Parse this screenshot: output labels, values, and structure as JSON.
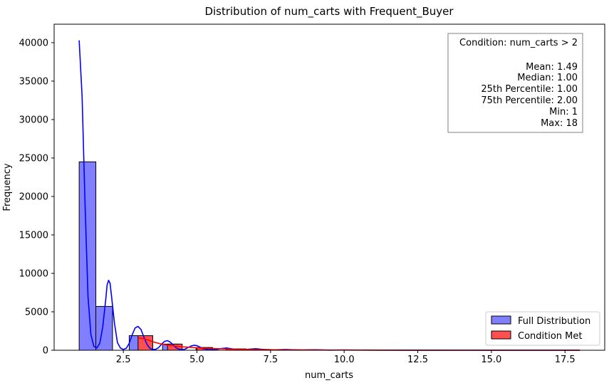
{
  "chart_data": {
    "type": "bar",
    "title": "Distribution of num_carts with Frequent_Buyer",
    "xlabel": "num_carts",
    "ylabel": "Frequency",
    "xlim": [
      0.15,
      18.85
    ],
    "ylim": [
      0,
      42400
    ],
    "x_ticks": [
      "2.5",
      "5.0",
      "7.5",
      "10.0",
      "12.5",
      "15.0",
      "17.5"
    ],
    "x_tick_values": [
      2.5,
      5.0,
      7.5,
      10.0,
      12.5,
      15.0,
      17.5
    ],
    "y_ticks": [
      "0",
      "5000",
      "10000",
      "15000",
      "20000",
      "25000",
      "30000",
      "35000",
      "40000"
    ],
    "y_tick_values": [
      0,
      5000,
      10000,
      15000,
      20000,
      25000,
      30000,
      35000,
      40000
    ],
    "series": [
      {
        "name": "Full Distribution",
        "color": "#7f7fff",
        "kde_color": "#0000ff",
        "bins": [
          {
            "x0": 1.0,
            "x1": 1.567,
            "value": 24500
          },
          {
            "x0": 1.567,
            "x1": 2.133,
            "value": 5700
          },
          {
            "x0": 2.133,
            "x1": 2.7,
            "value": 0
          },
          {
            "x0": 2.7,
            "x1": 3.267,
            "value": 1900
          },
          {
            "x0": 3.267,
            "x1": 3.833,
            "value": 0
          },
          {
            "x0": 3.833,
            "x1": 4.4,
            "value": 800
          },
          {
            "x0": 4.4,
            "x1": 4.967,
            "value": 0
          },
          {
            "x0": 4.967,
            "x1": 5.533,
            "value": 350
          },
          {
            "x0": 5.533,
            "x1": 6.1,
            "value": 0
          },
          {
            "x0": 6.1,
            "x1": 6.667,
            "value": 180
          },
          {
            "x0": 6.667,
            "x1": 7.233,
            "value": 110
          },
          {
            "x0": 7.233,
            "x1": 7.8,
            "value": 0
          },
          {
            "x0": 7.8,
            "x1": 8.367,
            "value": 60
          },
          {
            "x0": 8.367,
            "x1": 8.933,
            "value": 0
          },
          {
            "x0": 8.933,
            "x1": 9.5,
            "value": 35
          },
          {
            "x0": 9.5,
            "x1": 10.067,
            "value": 20
          },
          {
            "x0": 10.067,
            "x1": 10.633,
            "value": 0
          },
          {
            "x0": 10.633,
            "x1": 11.2,
            "value": 12
          },
          {
            "x0": 11.2,
            "x1": 11.767,
            "value": 8
          },
          {
            "x0": 11.767,
            "x1": 12.333,
            "value": 6
          },
          {
            "x0": 12.333,
            "x1": 12.9,
            "value": 0
          },
          {
            "x0": 12.9,
            "x1": 13.467,
            "value": 4
          },
          {
            "x0": 13.467,
            "x1": 14.033,
            "value": 3
          },
          {
            "x0": 14.033,
            "x1": 14.6,
            "value": 0
          },
          {
            "x0": 14.6,
            "x1": 15.167,
            "value": 2
          },
          {
            "x0": 15.167,
            "x1": 15.733,
            "value": 1
          },
          {
            "x0": 15.733,
            "x1": 16.3,
            "value": 0
          },
          {
            "x0": 16.3,
            "x1": 16.867,
            "value": 1
          },
          {
            "x0": 16.867,
            "x1": 17.433,
            "value": 0
          },
          {
            "x0": 17.433,
            "x1": 18.0,
            "value": 1
          }
        ],
        "kde": [
          [
            1.0,
            40300
          ],
          [
            1.1,
            33000
          ],
          [
            1.2,
            19000
          ],
          [
            1.3,
            7000
          ],
          [
            1.4,
            2000
          ],
          [
            1.5,
            500
          ],
          [
            1.6,
            300
          ],
          [
            1.7,
            900
          ],
          [
            1.8,
            3000
          ],
          [
            1.9,
            6500
          ],
          [
            1.95,
            8500
          ],
          [
            2.0,
            9100
          ],
          [
            2.05,
            8700
          ],
          [
            2.1,
            7000
          ],
          [
            2.2,
            3500
          ],
          [
            2.3,
            1000
          ],
          [
            2.4,
            300
          ],
          [
            2.5,
            100
          ],
          [
            2.6,
            250
          ],
          [
            2.7,
            900
          ],
          [
            2.8,
            2000
          ],
          [
            2.9,
            2900
          ],
          [
            3.0,
            3100
          ],
          [
            3.1,
            2700
          ],
          [
            3.2,
            1700
          ],
          [
            3.3,
            800
          ],
          [
            3.4,
            250
          ],
          [
            3.5,
            100
          ],
          [
            3.6,
            120
          ],
          [
            3.7,
            350
          ],
          [
            3.8,
            800
          ],
          [
            3.9,
            1150
          ],
          [
            4.0,
            1250
          ],
          [
            4.1,
            1050
          ],
          [
            4.2,
            650
          ],
          [
            4.3,
            300
          ],
          [
            4.4,
            120
          ],
          [
            4.5,
            80
          ],
          [
            4.6,
            150
          ],
          [
            4.7,
            350
          ],
          [
            4.8,
            550
          ],
          [
            4.9,
            650
          ],
          [
            5.0,
            600
          ],
          [
            5.1,
            420
          ],
          [
            5.2,
            220
          ],
          [
            5.4,
            80
          ],
          [
            5.6,
            60
          ],
          [
            5.8,
            200
          ],
          [
            6.0,
            300
          ],
          [
            6.2,
            180
          ],
          [
            6.5,
            60
          ],
          [
            6.8,
            150
          ],
          [
            7.0,
            200
          ],
          [
            7.2,
            120
          ],
          [
            7.5,
            40
          ],
          [
            8.0,
            100
          ],
          [
            8.5,
            30
          ],
          [
            9.0,
            60
          ],
          [
            9.5,
            20
          ],
          [
            10.0,
            40
          ],
          [
            11.0,
            15
          ],
          [
            12.0,
            20
          ],
          [
            13.0,
            10
          ],
          [
            14.0,
            12
          ],
          [
            15.0,
            6
          ],
          [
            16.0,
            5
          ],
          [
            17.0,
            3
          ],
          [
            18.0,
            2
          ]
        ]
      },
      {
        "name": "Condition Met",
        "color": "#ff5050",
        "kde_color": "#ff0000",
        "bins": [
          {
            "x0": 3.0,
            "x1": 3.5,
            "value": 1900
          },
          {
            "x0": 3.5,
            "x1": 4.0,
            "value": 0
          },
          {
            "x0": 4.0,
            "x1": 4.5,
            "value": 800
          },
          {
            "x0": 4.5,
            "x1": 5.0,
            "value": 0
          },
          {
            "x0": 5.0,
            "x1": 5.5,
            "value": 350
          },
          {
            "x0": 5.5,
            "x1": 6.0,
            "value": 0
          },
          {
            "x0": 6.0,
            "x1": 6.5,
            "value": 180
          },
          {
            "x0": 6.5,
            "x1": 7.0,
            "value": 0
          },
          {
            "x0": 7.0,
            "x1": 7.5,
            "value": 110
          },
          {
            "x0": 7.5,
            "x1": 8.0,
            "value": 0
          },
          {
            "x0": 8.0,
            "x1": 8.5,
            "value": 60
          },
          {
            "x0": 8.5,
            "x1": 9.0,
            "value": 0
          },
          {
            "x0": 9.0,
            "x1": 9.5,
            "value": 35
          },
          {
            "x0": 9.5,
            "x1": 10.0,
            "value": 0
          },
          {
            "x0": 10.0,
            "x1": 10.5,
            "value": 20
          },
          {
            "x0": 10.5,
            "x1": 11.0,
            "value": 0
          },
          {
            "x0": 11.0,
            "x1": 11.5,
            "value": 12
          },
          {
            "x0": 11.5,
            "x1": 12.0,
            "value": 8
          },
          {
            "x0": 12.0,
            "x1": 12.5,
            "value": 6
          },
          {
            "x0": 12.5,
            "x1": 13.0,
            "value": 0
          },
          {
            "x0": 13.0,
            "x1": 13.5,
            "value": 4
          },
          {
            "x0": 13.5,
            "x1": 14.0,
            "value": 3
          },
          {
            "x0": 14.0,
            "x1": 14.5,
            "value": 0
          },
          {
            "x0": 14.5,
            "x1": 15.0,
            "value": 0
          },
          {
            "x0": 15.0,
            "x1": 15.5,
            "value": 2
          },
          {
            "x0": 15.5,
            "x1": 16.0,
            "value": 1
          },
          {
            "x0": 16.0,
            "x1": 16.5,
            "value": 0
          },
          {
            "x0": 16.5,
            "x1": 17.0,
            "value": 1
          },
          {
            "x0": 17.0,
            "x1": 17.5,
            "value": 0
          },
          {
            "x0": 17.5,
            "x1": 18.0,
            "value": 1
          }
        ],
        "kde": [
          [
            3.0,
            1600
          ],
          [
            3.2,
            1500
          ],
          [
            3.4,
            1250
          ],
          [
            3.6,
            1000
          ],
          [
            3.8,
            800
          ],
          [
            4.0,
            680
          ],
          [
            4.2,
            580
          ],
          [
            4.5,
            450
          ],
          [
            5.0,
            320
          ],
          [
            5.5,
            230
          ],
          [
            6.0,
            170
          ],
          [
            6.5,
            120
          ],
          [
            7.0,
            90
          ],
          [
            7.5,
            70
          ],
          [
            8.0,
            55
          ],
          [
            9.0,
            35
          ],
          [
            10.0,
            22
          ],
          [
            11.0,
            14
          ],
          [
            12.0,
            10
          ],
          [
            13.0,
            7
          ],
          [
            14.0,
            5
          ],
          [
            15.0,
            4
          ],
          [
            16.0,
            3
          ],
          [
            17.0,
            2
          ],
          [
            18.0,
            2
          ]
        ]
      }
    ],
    "stats_box": {
      "condition": "Condition: num_carts > 2",
      "lines": [
        "Mean: 1.49",
        "Median: 1.00",
        "25th Percentile: 1.00",
        "75th Percentile: 2.00",
        "Min: 1",
        "Max: 18"
      ],
      "placement": "top-right"
    },
    "legend": {
      "placement": "bottom-right",
      "entries": [
        "Full Distribution",
        "Condition Met"
      ]
    },
    "grid": false
  }
}
